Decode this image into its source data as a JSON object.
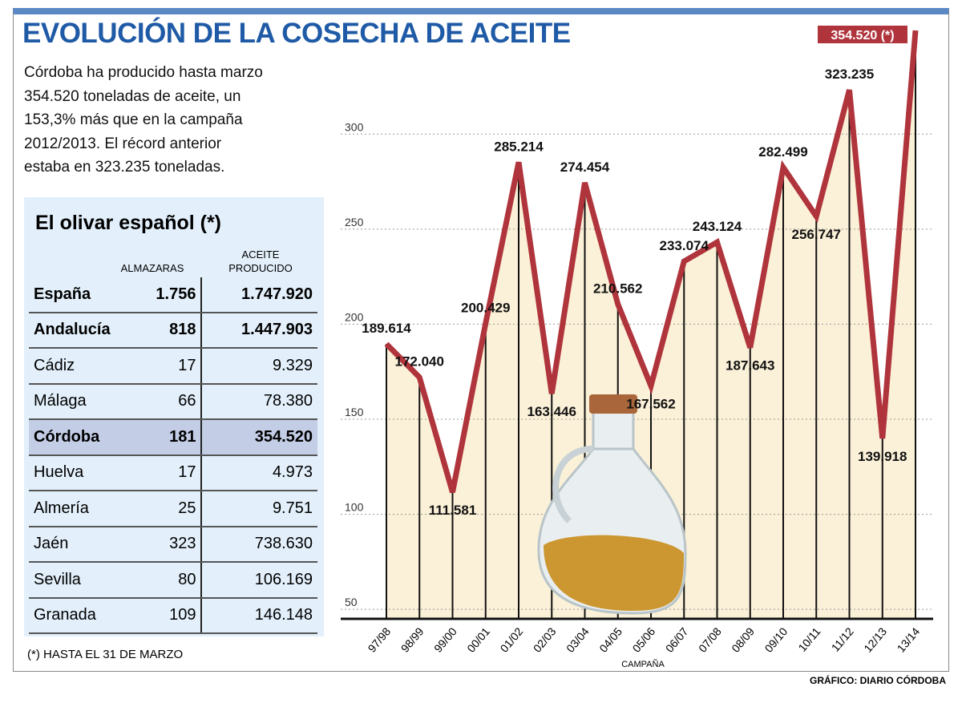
{
  "header": {
    "title": "EVOLUCIÓN DE LA COSECHA DE ACEITE"
  },
  "intro": {
    "lines": [
      "Córdoba ha producido hasta marzo",
      "354.520 toneladas de aceite, un",
      "153,3% más que en la campaña",
      "2012/2013. El récord anterior",
      "estaba en 323.235 toneladas."
    ]
  },
  "table": {
    "title": "El olivar español (*)",
    "columns": [
      "ALMAZARAS",
      [
        "ACEITE",
        "PRODUCIDO"
      ]
    ],
    "rows": [
      [
        "España",
        "1.756",
        "1.747.920"
      ],
      [
        "Andalucía",
        "818",
        "1.447.903"
      ],
      [
        "Cádiz",
        "17",
        "9.329"
      ],
      [
        "Málaga",
        "66",
        "78.380"
      ],
      [
        "Córdoba",
        "181",
        "354.520"
      ],
      [
        "Huelva",
        "17",
        "4.973"
      ],
      [
        "Almería",
        "25",
        "9.751"
      ],
      [
        "Jaén",
        "323",
        "738.630"
      ],
      [
        "Sevilla",
        "80",
        "106.169"
      ],
      [
        "Granada",
        "109",
        "146.148"
      ]
    ]
  },
  "footnote": "(*) HASTA EL 31 DE MARZO",
  "credit": "GRÁFICO: DIARIO CÓRDOBA",
  "chart_data": {
    "type": "line",
    "x_label": "CAMPAÑA",
    "categories": [
      "97/98",
      "98/99",
      "99/00",
      "00/01",
      "01/02",
      "02/03",
      "03/04",
      "04/05",
      "05/06",
      "06/07",
      "07/08",
      "08/09",
      "09/10",
      "10/11",
      "11/12",
      "12/13",
      "13/14"
    ],
    "values": [
      189.614,
      172.04,
      111.581,
      200.429,
      285.214,
      163.446,
      274.454,
      210.562,
      167.562,
      233.074,
      243.124,
      187.643,
      282.499,
      256.747,
      323.235,
      139.918,
      354.52
    ],
    "value_labels": [
      "189.614",
      "172.040",
      "111.581",
      "200.429",
      "285.214",
      "163.446",
      "274.454",
      "210.562",
      "167.562",
      "233.074",
      "243.124",
      "187.643",
      "282.499",
      "256.747",
      "323.235",
      "139.918",
      "354.520 (*)"
    ],
    "color": "#b0343c",
    "fill": "#fbf1d8",
    "ylim": [
      45,
      360
    ],
    "yticks": [
      50,
      100,
      150,
      200,
      250,
      300
    ],
    "grid": true
  }
}
